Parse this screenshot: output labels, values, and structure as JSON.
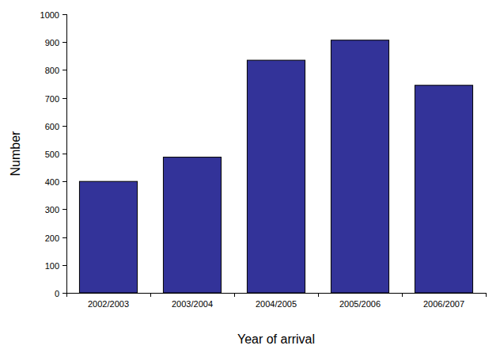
{
  "chart_data": {
    "type": "bar",
    "x_label": "Year of arrival",
    "y_label": "Number",
    "categories": [
      "2002/2003",
      "2003/2004",
      "2004/2005",
      "2005/2006",
      "2006/2007"
    ],
    "values": [
      400,
      487,
      835,
      907,
      745
    ],
    "color": "#333399",
    "ylim": [
      0,
      1000
    ],
    "yticks": [
      0,
      100,
      200,
      300,
      400,
      500,
      600,
      700,
      800,
      900,
      1000
    ],
    "grid": false
  }
}
